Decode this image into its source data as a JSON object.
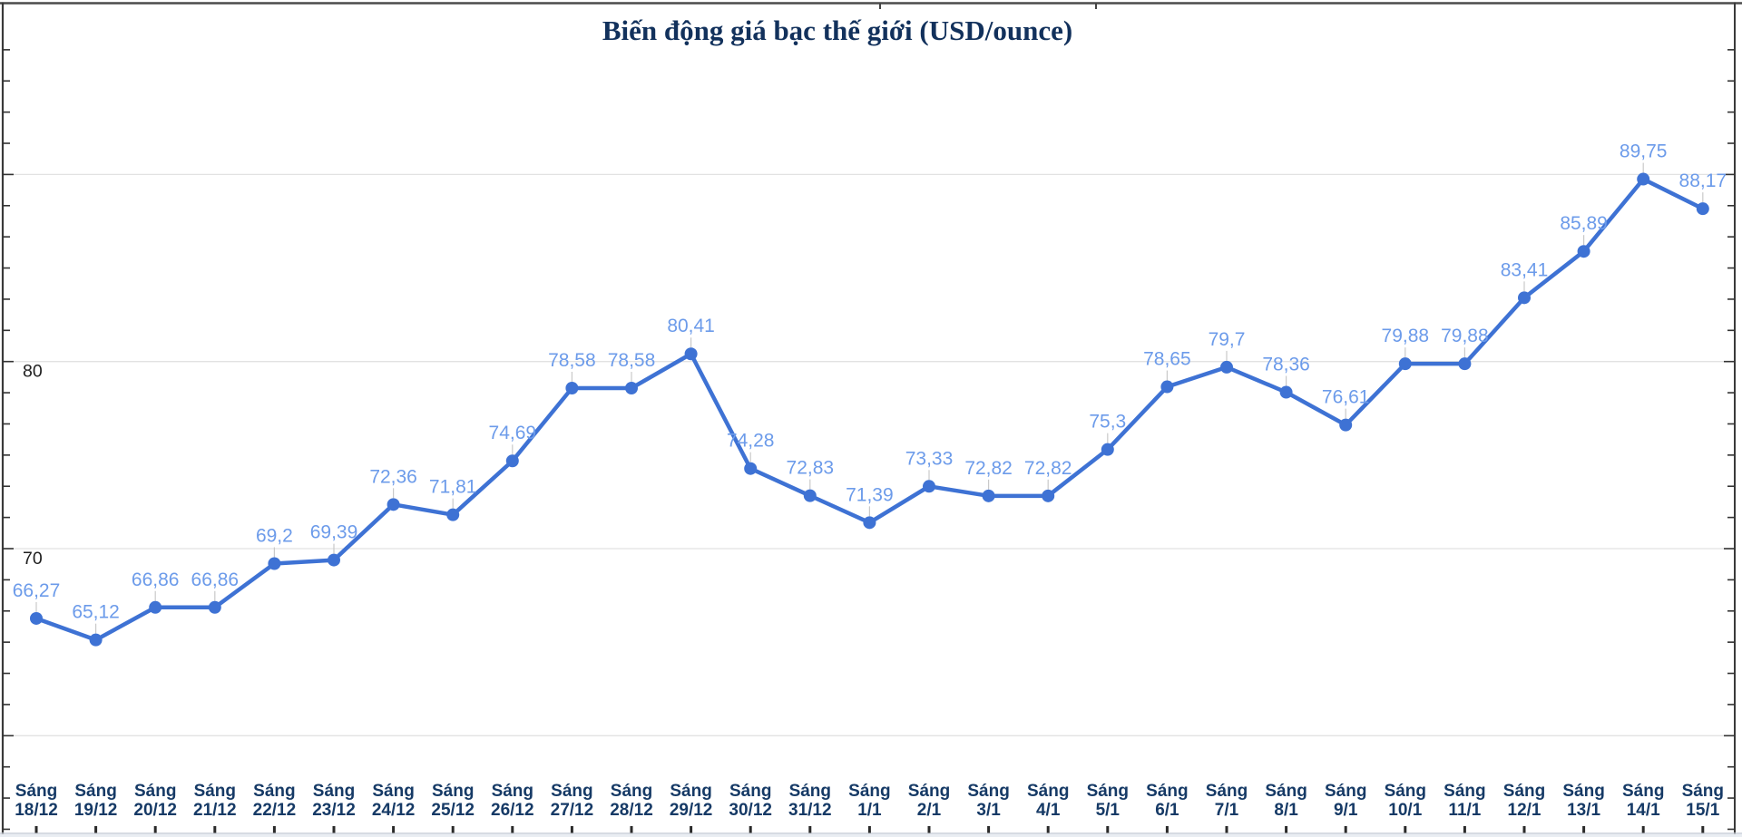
{
  "chart_data": {
    "type": "line",
    "title": "Biến động giá bạc thế giới (USD/ounce)",
    "unit": "USD/ounce",
    "decimal_separator": ",",
    "legend": "none",
    "grid": "horizontal-only",
    "categories": [
      "Sáng 18/12",
      "Sáng 19/12",
      "Sáng 20/12",
      "Sáng 21/12",
      "Sáng 22/12",
      "Sáng 23/12",
      "Sáng 24/12",
      "Sáng 25/12",
      "Sáng 26/12",
      "Sáng 27/12",
      "Sáng 28/12",
      "Sáng 29/12",
      "Sáng 30/12",
      "Sáng 31/12",
      "Sáng 1/1",
      "Sáng 2/1",
      "Sáng 3/1",
      "Sáng 4/1",
      "Sáng 5/1",
      "Sáng 6/1",
      "Sáng 7/1",
      "Sáng 8/1",
      "Sáng 9/1",
      "Sáng 10/1",
      "Sáng 11/1",
      "Sáng 12/1",
      "Sáng 13/1",
      "Sáng 14/1",
      "Sáng 15/1"
    ],
    "values": [
      66.27,
      65.12,
      66.86,
      66.86,
      69.2,
      69.39,
      72.36,
      71.81,
      74.69,
      78.58,
      78.58,
      80.41,
      74.28,
      72.83,
      71.39,
      73.33,
      72.82,
      72.82,
      75.3,
      78.65,
      79.7,
      78.36,
      76.61,
      79.88,
      79.88,
      83.41,
      85.89,
      89.75,
      88.17
    ],
    "point_labels": [
      "66,27",
      "65,12",
      "66,86",
      "66,86",
      "69,2",
      "69,39",
      "72,36",
      "71,81",
      "74,69",
      "78,58",
      "78,58",
      "80,41",
      "74,28",
      "72,83",
      "71,39",
      "73,33",
      "72,82",
      "72,82",
      "75,3",
      "78,65",
      "79,7",
      "78,36",
      "76,61",
      "79,88",
      "79,88",
      "83,41",
      "85,89",
      "89,75",
      "88,17"
    ],
    "y_axis": {
      "tick_labels": [
        "80",
        "70"
      ],
      "tick_label_values": [
        80,
        70
      ],
      "gridline_values": [
        90,
        80,
        70,
        60
      ],
      "ylim": [
        54.5,
        99.5
      ]
    }
  },
  "colors": {
    "line": "#3e72d4",
    "point": "#3e72d4",
    "point_label": "#6c9bea",
    "leader": "#c9c9c9",
    "gridline": "#e2e2e2",
    "axis": "#3a3a3a",
    "tick": "#333333",
    "x_label": "#163a66",
    "y_label": "#202020",
    "title": "#12315c",
    "bottom_line": "#c9cfd8",
    "bottom_strip": "#e9edf2",
    "background": "#ffffff"
  }
}
